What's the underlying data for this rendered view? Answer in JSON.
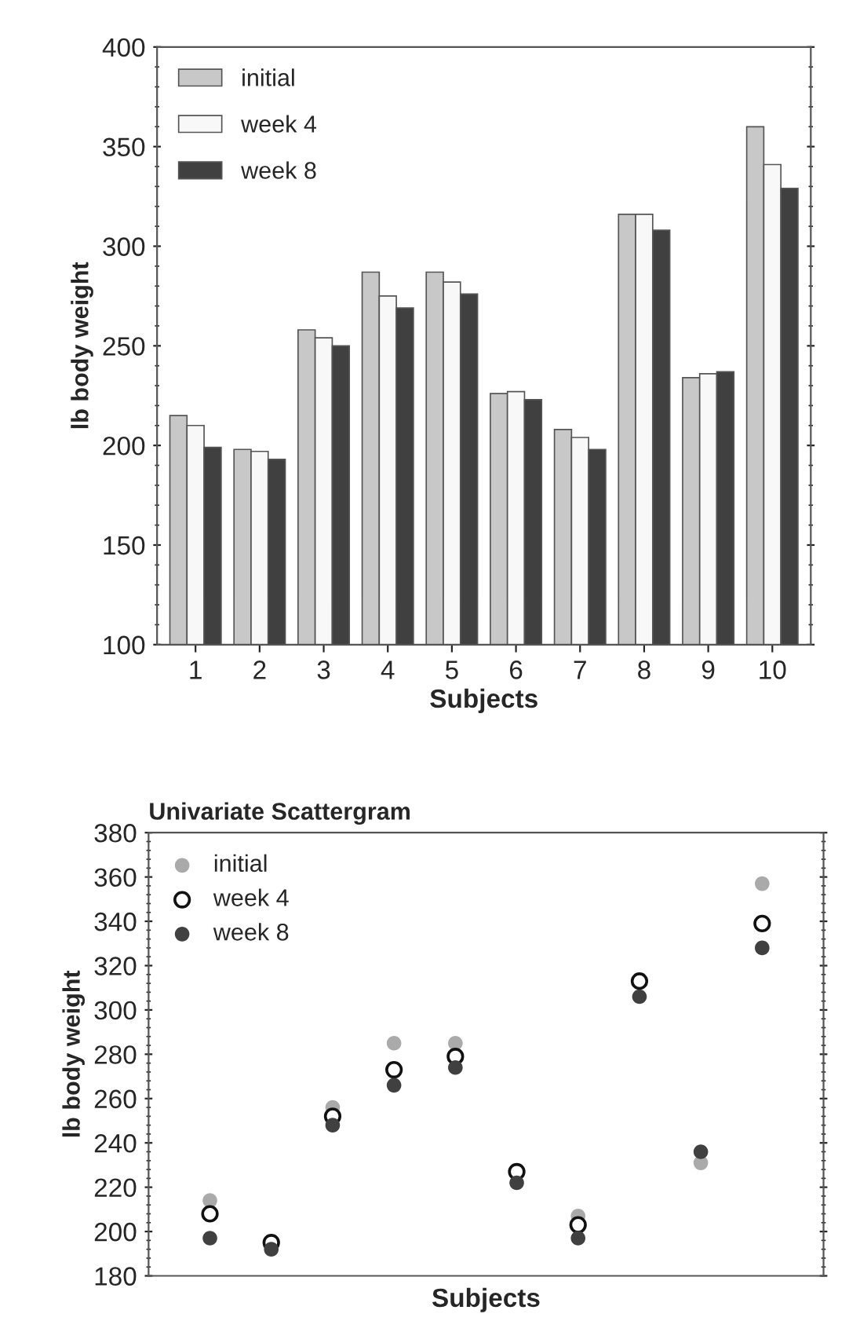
{
  "chart_data": [
    {
      "type": "bar",
      "xlabel": "Subjects",
      "ylabel": "lb body weight",
      "categories": [
        "1",
        "2",
        "3",
        "4",
        "5",
        "6",
        "7",
        "8",
        "9",
        "10"
      ],
      "series": [
        {
          "name": "initial",
          "color": "#c8c8c8",
          "values": [
            215,
            198,
            258,
            287,
            287,
            226,
            208,
            316,
            234,
            360
          ]
        },
        {
          "name": "week 4",
          "color": "#f8f8f8",
          "values": [
            210,
            197,
            254,
            275,
            282,
            227,
            204,
            316,
            236,
            341
          ]
        },
        {
          "name": "week 8",
          "color": "#404040",
          "values": [
            199,
            193,
            250,
            269,
            276,
            223,
            198,
            308,
            237,
            329
          ]
        }
      ],
      "ylim": [
        100,
        400
      ],
      "yticks": [
        100,
        150,
        200,
        250,
        300,
        350,
        400
      ],
      "grid": false,
      "legend": "top left"
    },
    {
      "type": "scatter",
      "title": "Univariate Scattergram",
      "xlabel": "Subjects",
      "ylabel": "lb body weight",
      "categories": [
        null,
        null,
        null,
        null,
        null,
        null,
        null,
        null,
        null,
        null
      ],
      "series": [
        {
          "name": "initial",
          "color": "#aaaaaa",
          "values": [
            214,
            null,
            256,
            285,
            285,
            null,
            207,
            null,
            231,
            357
          ]
        },
        {
          "name": "week 4",
          "color": "#ffffff",
          "values": [
            208,
            195,
            252,
            273,
            279,
            227,
            203,
            313,
            null,
            339
          ]
        },
        {
          "name": "week 8",
          "color": "#404040",
          "values": [
            197,
            192,
            248,
            266,
            274,
            222,
            197,
            306,
            236,
            328
          ]
        }
      ],
      "ylim": [
        180,
        380
      ],
      "yticks": [
        180,
        200,
        220,
        240,
        260,
        280,
        300,
        320,
        340,
        360,
        380
      ],
      "grid": false,
      "legend": "top left",
      "marker": "circle"
    }
  ]
}
